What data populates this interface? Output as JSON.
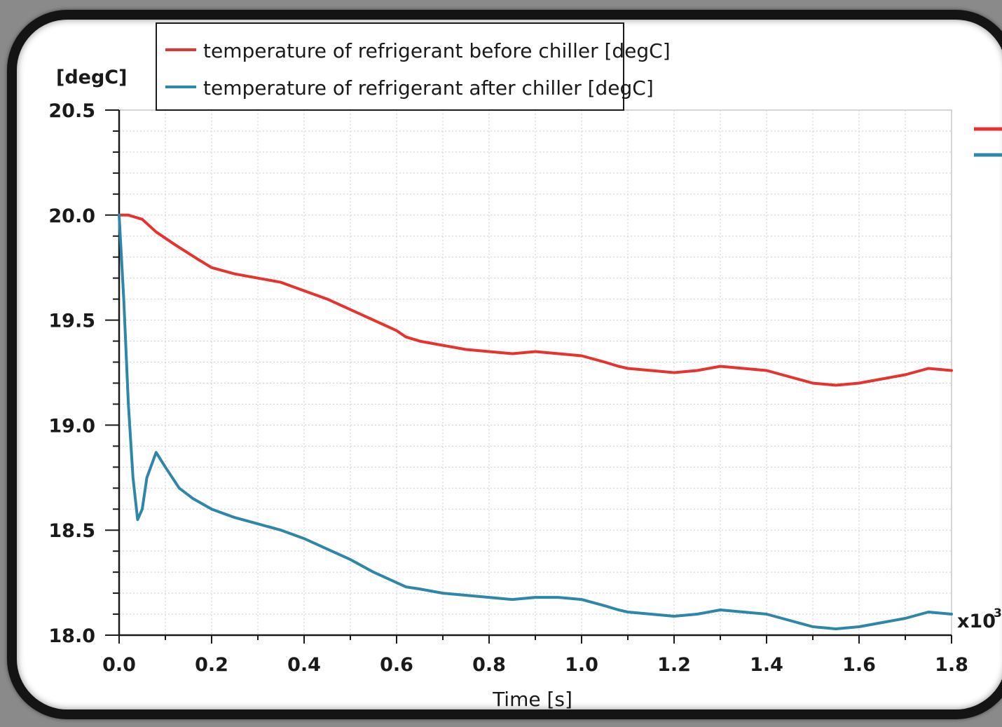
{
  "chart_data": {
    "type": "line",
    "ylabel": "[degC]",
    "xlabel": "Time [s]",
    "x_multiplier": "x10",
    "x_multiplier_exp": "3",
    "xlim": [
      0.0,
      1.8
    ],
    "ylim": [
      18.0,
      20.5
    ],
    "x_ticks": [
      "0.0",
      "0.2",
      "0.4",
      "0.6",
      "0.8",
      "1.0",
      "1.2",
      "1.4",
      "1.6",
      "1.8"
    ],
    "y_ticks": [
      "18.0",
      "18.5",
      "19.0",
      "19.5",
      "20.0",
      "20.5"
    ],
    "grid": true,
    "legend_position": "top-left",
    "series": [
      {
        "name": "temperature of refrigerant before chiller [degC]",
        "color": "#e8322e",
        "x": [
          0.0,
          0.02,
          0.05,
          0.08,
          0.12,
          0.17,
          0.2,
          0.25,
          0.3,
          0.35,
          0.4,
          0.45,
          0.5,
          0.55,
          0.6,
          0.62,
          0.65,
          0.7,
          0.75,
          0.8,
          0.85,
          0.9,
          0.95,
          1.0,
          1.05,
          1.08,
          1.1,
          1.15,
          1.2,
          1.25,
          1.3,
          1.35,
          1.4,
          1.45,
          1.5,
          1.55,
          1.6,
          1.65,
          1.7,
          1.75,
          1.8
        ],
        "y": [
          20.0,
          20.0,
          19.98,
          19.92,
          19.86,
          19.79,
          19.75,
          19.72,
          19.7,
          19.68,
          19.64,
          19.6,
          19.55,
          19.5,
          19.45,
          19.42,
          19.4,
          19.38,
          19.36,
          19.35,
          19.34,
          19.35,
          19.34,
          19.33,
          19.3,
          19.28,
          19.27,
          19.26,
          19.25,
          19.26,
          19.28,
          19.27,
          19.26,
          19.23,
          19.2,
          19.19,
          19.2,
          19.22,
          19.24,
          19.27,
          19.26
        ]
      },
      {
        "name": "temperature of refrigerant after chiller [degC]",
        "color": "#2e86a8",
        "x": [
          0.0,
          0.01,
          0.02,
          0.03,
          0.04,
          0.05,
          0.06,
          0.08,
          0.1,
          0.13,
          0.16,
          0.2,
          0.25,
          0.3,
          0.35,
          0.4,
          0.45,
          0.5,
          0.55,
          0.6,
          0.62,
          0.65,
          0.7,
          0.75,
          0.8,
          0.85,
          0.9,
          0.95,
          1.0,
          1.05,
          1.08,
          1.1,
          1.15,
          1.2,
          1.25,
          1.3,
          1.35,
          1.4,
          1.45,
          1.5,
          1.55,
          1.6,
          1.65,
          1.7,
          1.75,
          1.8
        ],
        "y": [
          20.0,
          19.6,
          19.1,
          18.75,
          18.55,
          18.6,
          18.75,
          18.87,
          18.8,
          18.7,
          18.65,
          18.6,
          18.56,
          18.53,
          18.5,
          18.46,
          18.41,
          18.36,
          18.3,
          18.25,
          18.23,
          18.22,
          18.2,
          18.19,
          18.18,
          18.17,
          18.18,
          18.18,
          18.17,
          18.14,
          18.12,
          18.11,
          18.1,
          18.09,
          18.1,
          18.12,
          18.11,
          18.1,
          18.07,
          18.04,
          18.03,
          18.04,
          18.06,
          18.08,
          18.11,
          18.1
        ]
      }
    ]
  }
}
